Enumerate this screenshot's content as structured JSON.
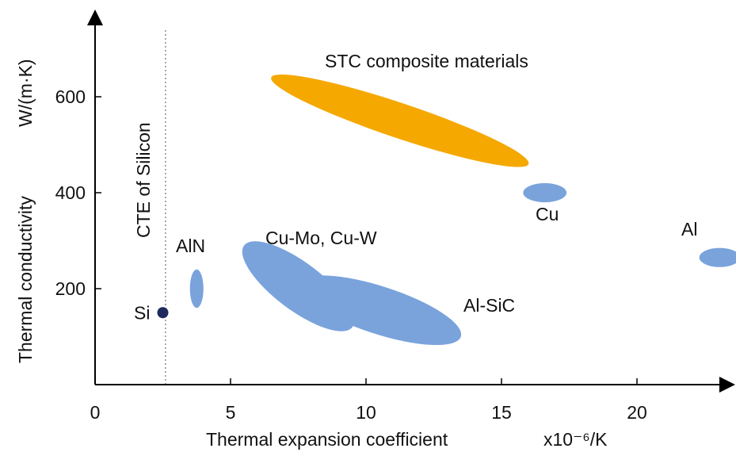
{
  "colors": {
    "composite": "#f5a800",
    "material": "#7aa3dc",
    "point": "#1f2a5c",
    "axis": "#000000",
    "guide": "#555555"
  },
  "chart_data": {
    "type": "scatter",
    "title": "",
    "xlabel": "Thermal expansion coefficient",
    "xlabel_unit": "x10⁻⁶/K",
    "ylabel": "Thermal conductivity",
    "ylabel_unit": "W/(m·K)",
    "xlim": [
      0,
      24
    ],
    "ylim": [
      0,
      760
    ],
    "x_ticks": [
      0,
      5,
      10,
      15,
      20
    ],
    "y_ticks": [
      200,
      400,
      600
    ],
    "grid": false,
    "legend": "none",
    "reference_line": {
      "x": 2.6,
      "label": "CTE of Silicon"
    },
    "regions": [
      {
        "label": "STC composite materials",
        "x_range": [
          6.5,
          16.0
        ],
        "y_range": [
          460,
          640
        ],
        "color_key": "composite"
      },
      {
        "label": "Cu",
        "x_range": [
          15.8,
          17.4
        ],
        "y_range": [
          380,
          420
        ],
        "color_key": "material"
      },
      {
        "label": "Al",
        "x_range": [
          22.3,
          23.8
        ],
        "y_range": [
          245,
          285
        ],
        "color_key": "material"
      },
      {
        "label": "AlN",
        "x_range": [
          3.5,
          4.0
        ],
        "y_range": [
          160,
          240
        ],
        "color_key": "material"
      },
      {
        "label": "Cu-Mo, Cu-W",
        "x_range": [
          5.5,
          9.5
        ],
        "y_range": [
          120,
          290
        ],
        "color_key": "material"
      },
      {
        "label": "Al-SiC",
        "x_range": [
          7.5,
          13.5
        ],
        "y_range": [
          100,
          210
        ],
        "color_key": "material"
      }
    ],
    "points": [
      {
        "label": "Si",
        "x": 2.5,
        "y": 150
      }
    ]
  }
}
